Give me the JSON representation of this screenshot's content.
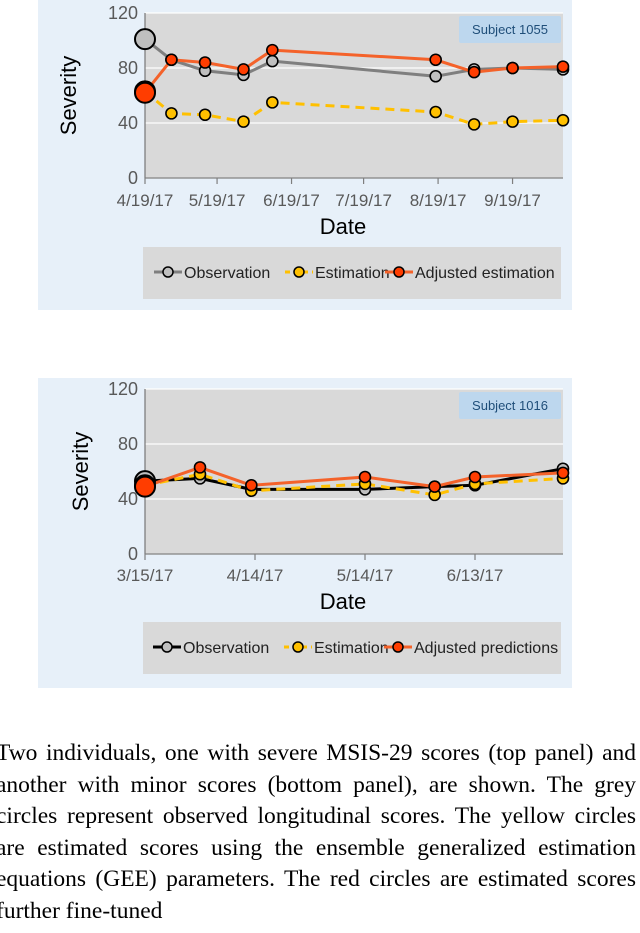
{
  "chart_data": [
    {
      "type": "line",
      "badge": "Subject 1055",
      "xlabel": "Date",
      "ylabel": "Severity",
      "ylim": [
        0,
        120
      ],
      "yticks": [
        0,
        40,
        80,
        120
      ],
      "xticks": [
        "4/19/17",
        "5/19/17",
        "6/19/17",
        "7/19/17",
        "8/19/17",
        "9/19/17"
      ],
      "x_range": [
        "2017-04-19",
        "2017-10-10"
      ],
      "grid": "horizontal",
      "legend_position": "bottom",
      "series": [
        {
          "name": "Observation",
          "color": "#7f7f7f",
          "line_color": "#7f7f7f",
          "marker_fill": "#bfbfbf",
          "dashed": false,
          "points": [
            {
              "x": "2017-04-19",
              "y": 101
            },
            {
              "x": "2017-04-30",
              "y": 86
            },
            {
              "x": "2017-05-14",
              "y": 78
            },
            {
              "x": "2017-05-30",
              "y": 75
            },
            {
              "x": "2017-06-11",
              "y": 85
            },
            {
              "x": "2017-08-18",
              "y": 74
            },
            {
              "x": "2017-09-03",
              "y": 79
            },
            {
              "x": "2017-09-19",
              "y": 80
            },
            {
              "x": "2017-10-10",
              "y": 79
            }
          ]
        },
        {
          "name": "Estimation",
          "color": "#ffc000",
          "line_color": "#ffc000",
          "marker_fill": "#ffc000",
          "dashed": true,
          "points": [
            {
              "x": "2017-04-19",
              "y": 63
            },
            {
              "x": "2017-04-30",
              "y": 47
            },
            {
              "x": "2017-05-14",
              "y": 46
            },
            {
              "x": "2017-05-30",
              "y": 41
            },
            {
              "x": "2017-06-11",
              "y": 55
            },
            {
              "x": "2017-08-18",
              "y": 48
            },
            {
              "x": "2017-09-03",
              "y": 39
            },
            {
              "x": "2017-09-19",
              "y": 41
            },
            {
              "x": "2017-10-10",
              "y": 42
            }
          ]
        },
        {
          "name": "Adjusted estimation",
          "color": "#ff3d00",
          "line_color": "#f4622a",
          "marker_fill": "#ff3d00",
          "dashed": false,
          "points": [
            {
              "x": "2017-04-19",
              "y": 62
            },
            {
              "x": "2017-04-30",
              "y": 86
            },
            {
              "x": "2017-05-14",
              "y": 84
            },
            {
              "x": "2017-05-30",
              "y": 79
            },
            {
              "x": "2017-06-11",
              "y": 93
            },
            {
              "x": "2017-08-18",
              "y": 86
            },
            {
              "x": "2017-09-03",
              "y": 77
            },
            {
              "x": "2017-09-19",
              "y": 80
            },
            {
              "x": "2017-10-10",
              "y": 81
            }
          ]
        }
      ]
    },
    {
      "type": "line",
      "badge": "Subject 1016",
      "xlabel": "Date",
      "ylabel": "Severity",
      "ylim": [
        0,
        120
      ],
      "yticks": [
        0,
        40,
        80,
        120
      ],
      "xticks": [
        "3/15/17",
        "4/14/17",
        "5/14/17",
        "6/13/17"
      ],
      "x_range": [
        "2017-03-15",
        "2017-07-07"
      ],
      "grid": "horizontal",
      "legend_position": "bottom",
      "series": [
        {
          "name": "Observation",
          "color": "#000000",
          "line_color": "#000000",
          "marker_fill": "#bfbfbf",
          "dashed": false,
          "points": [
            {
              "x": "2017-03-15",
              "y": 53
            },
            {
              "x": "2017-03-30",
              "y": 55
            },
            {
              "x": "2017-04-13",
              "y": 47
            },
            {
              "x": "2017-05-14",
              "y": 47
            },
            {
              "x": "2017-06-02",
              "y": 49
            },
            {
              "x": "2017-06-13",
              "y": 50
            },
            {
              "x": "2017-07-07",
              "y": 62
            }
          ]
        },
        {
          "name": "Estimation",
          "color": "#ffc000",
          "line_color": "#ffc000",
          "marker_fill": "#ffc000",
          "dashed": true,
          "points": [
            {
              "x": "2017-03-15",
              "y": 50
            },
            {
              "x": "2017-03-30",
              "y": 58
            },
            {
              "x": "2017-04-13",
              "y": 46
            },
            {
              "x": "2017-05-14",
              "y": 51
            },
            {
              "x": "2017-06-02",
              "y": 43
            },
            {
              "x": "2017-06-13",
              "y": 51
            },
            {
              "x": "2017-07-07",
              "y": 55
            }
          ]
        },
        {
          "name": "Adjusted predictions",
          "color": "#ff3d00",
          "line_color": "#f4622a",
          "marker_fill": "#ff3d00",
          "dashed": false,
          "points": [
            {
              "x": "2017-03-15",
              "y": 49
            },
            {
              "x": "2017-03-30",
              "y": 63
            },
            {
              "x": "2017-04-13",
              "y": 50
            },
            {
              "x": "2017-05-14",
              "y": 56
            },
            {
              "x": "2017-06-02",
              "y": 49
            },
            {
              "x": "2017-06-13",
              "y": 56
            },
            {
              "x": "2017-07-07",
              "y": 59
            }
          ]
        }
      ]
    }
  ],
  "caption": "Two individuals, one with severe MSIS-29 scores (top panel) and another with minor scores (bottom panel), are shown. The grey circles represent observed longitudinal scores. The yellow circles are estimated scores using the ensemble generalized estimation equations (GEE) parameters. The red circles are estimated scores further fine-tuned"
}
